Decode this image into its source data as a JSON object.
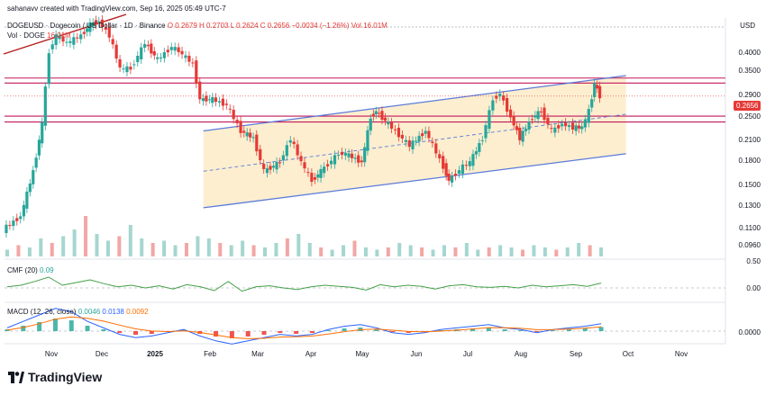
{
  "attribution": "sahanavv created with TradingView.com, Sep 16, 2025 05:49 UTC-7",
  "header": {
    "symbol": "DOGEUSD · Dogecoin / US Dollar · 1D · Binance",
    "open": "O 0.2679",
    "high": "H 0.2703",
    "low": "L 0.2624",
    "close": "C 0.2656",
    "change": "−0.0034 (−1.26%)",
    "vol": "Vol 16.01M",
    "vol_label": "Vol · DOGE",
    "vol_value": "16.01M"
  },
  "currency": "USD",
  "last_price_tag": "0.2656",
  "price_axis_labels": [
    "0.4000",
    "0.3500",
    "0.2900",
    "0.2656",
    "0.2500",
    "0.2100",
    "0.1800",
    "0.1500",
    "0.1300",
    "0.1100",
    "0.0960"
  ],
  "cmf": {
    "label": "CMF (20)",
    "value": "0.09",
    "axis_labels": [
      "0.50",
      "0.00"
    ]
  },
  "macd": {
    "label": "MACD (12, 26, close)",
    "hist": "0.0046",
    "macd": "0.0138",
    "signal": "0.0092",
    "axis_labels": [
      "0.0000"
    ]
  },
  "time_axis_labels": [
    "Nov",
    "Dec",
    "2025",
    "Feb",
    "Mar",
    "Apr",
    "May",
    "Jun",
    "Jul",
    "Aug",
    "Sep",
    "Oct",
    "Nov"
  ],
  "brand": "TradingView",
  "colors": {
    "up": "#26a69a",
    "down": "#e53935",
    "channel": "#5b7bd9",
    "zone_fill": "#fdebc8",
    "resistance": "#c2185b",
    "cmf": "#43a047",
    "macd": "#2962ff",
    "signal": "#ff6d00"
  },
  "chart_data": {
    "type": "candlestick",
    "symbol": "DOGEUSD",
    "interval": "1D",
    "ylim": [
      0.09,
      0.45
    ],
    "y_scale": "log",
    "x_range": [
      "2024-10-15",
      "2025-11-25"
    ],
    "series": [
      {
        "name": "DOGEUSD",
        "kind": "price_path",
        "points": [
          [
            "2024-10-15",
            0.108
          ],
          [
            "2024-10-25",
            0.118
          ],
          [
            "2024-11-01",
            0.16
          ],
          [
            "2024-11-06",
            0.22
          ],
          [
            "2024-11-10",
            0.36
          ],
          [
            "2024-11-14",
            0.4
          ],
          [
            "2024-11-20",
            0.38
          ],
          [
            "2024-11-28",
            0.4
          ],
          [
            "2024-12-03",
            0.43
          ],
          [
            "2024-12-08",
            0.44
          ],
          [
            "2024-12-14",
            0.4
          ],
          [
            "2024-12-20",
            0.32
          ],
          [
            "2024-12-26",
            0.32
          ],
          [
            "2025-01-03",
            0.38
          ],
          [
            "2025-01-10",
            0.34
          ],
          [
            "2025-01-18",
            0.37
          ],
          [
            "2025-01-22",
            0.36
          ],
          [
            "2025-01-30",
            0.33
          ],
          [
            "2025-02-03",
            0.26
          ],
          [
            "2025-02-10",
            0.26
          ],
          [
            "2025-02-18",
            0.25
          ],
          [
            "2025-02-26",
            0.21
          ],
          [
            "2025-03-05",
            0.2
          ],
          [
            "2025-03-11",
            0.16
          ],
          [
            "2025-03-20",
            0.17
          ],
          [
            "2025-03-26",
            0.2
          ],
          [
            "2025-04-01",
            0.17
          ],
          [
            "2025-04-07",
            0.15
          ],
          [
            "2025-04-12",
            0.16
          ],
          [
            "2025-04-22",
            0.18
          ],
          [
            "2025-04-26",
            0.18
          ],
          [
            "2025-05-05",
            0.17
          ],
          [
            "2025-05-10",
            0.23
          ],
          [
            "2025-05-13",
            0.24
          ],
          [
            "2025-05-20",
            0.22
          ],
          [
            "2025-06-01",
            0.19
          ],
          [
            "2025-06-10",
            0.21
          ],
          [
            "2025-06-20",
            0.165
          ],
          [
            "2025-06-23",
            0.15
          ],
          [
            "2025-07-01",
            0.165
          ],
          [
            "2025-07-05",
            0.17
          ],
          [
            "2025-07-12",
            0.2
          ],
          [
            "2025-07-18",
            0.26
          ],
          [
            "2025-07-22",
            0.27
          ],
          [
            "2025-07-28",
            0.23
          ],
          [
            "2025-08-02",
            0.2
          ],
          [
            "2025-08-09",
            0.23
          ],
          [
            "2025-08-14",
            0.24
          ],
          [
            "2025-08-20",
            0.21
          ],
          [
            "2025-08-26",
            0.22
          ],
          [
            "2025-09-01",
            0.215
          ],
          [
            "2025-09-06",
            0.215
          ],
          [
            "2025-09-10",
            0.24
          ],
          [
            "2025-09-13",
            0.29
          ],
          [
            "2025-09-16",
            0.2656
          ]
        ]
      },
      {
        "name": "Upper channel",
        "kind": "trendline",
        "points": [
          [
            "2025-02-04",
            0.21
          ],
          [
            "2025-09-30",
            0.305
          ]
        ]
      },
      {
        "name": "Lower channel",
        "kind": "trendline",
        "points": [
          [
            "2025-02-04",
            0.125
          ],
          [
            "2025-09-30",
            0.18
          ]
        ]
      },
      {
        "name": "Midline",
        "kind": "dashed",
        "points": [
          [
            "2025-02-04",
            0.16
          ],
          [
            "2025-09-30",
            0.235
          ]
        ]
      },
      {
        "name": "Resistance",
        "kind": "hline",
        "values": [
          0.3,
          0.29,
          0.232,
          0.223
        ]
      }
    ],
    "volume": [
      3,
      5,
      4,
      8,
      6,
      9,
      12,
      18,
      10,
      7,
      9,
      14,
      8,
      6,
      7,
      5,
      6,
      9,
      8,
      6,
      5,
      7,
      5,
      4,
      6,
      8,
      10,
      6,
      4,
      3,
      5,
      7,
      4,
      3,
      4,
      6,
      5,
      4,
      3,
      5,
      4,
      6,
      3,
      4,
      5,
      4,
      3,
      5,
      4,
      3,
      4,
      6,
      5,
      4
    ],
    "cmf_series": [
      0.02,
      0.05,
      0.12,
      0.2,
      0.05,
      0.1,
      0.15,
      0.08,
      0.02,
      0.05,
      0.0,
      0.04,
      -0.02,
      0.06,
      0.02,
      -0.05,
      0.12,
      -0.06,
      0.02,
      0.04,
      0.0,
      -0.03,
      0.02,
      0.05,
      0.03,
      0.01,
      -0.04,
      0.06,
      0.02,
      0.05,
      0.03,
      -0.02,
      0.04,
      0.06,
      0.02,
      0.01,
      0.03,
      0.0,
      0.05,
      0.02,
      0.04,
      0.06,
      0.03,
      0.09
    ],
    "macd_hist": [
      0.002,
      0.006,
      0.01,
      0.014,
      0.012,
      0.006,
      0.002,
      -0.002,
      -0.004,
      -0.003,
      -0.001,
      0.001,
      -0.003,
      -0.006,
      -0.008,
      -0.006,
      -0.004,
      -0.002,
      -0.003,
      -0.002,
      0.001,
      0.003,
      0.004,
      0.002,
      -0.001,
      -0.002,
      -0.001,
      0.001,
      0.002,
      0.003,
      0.004,
      0.002,
      0.001,
      -0.001,
      0.001,
      0.002,
      0.003,
      0.0046
    ]
  }
}
